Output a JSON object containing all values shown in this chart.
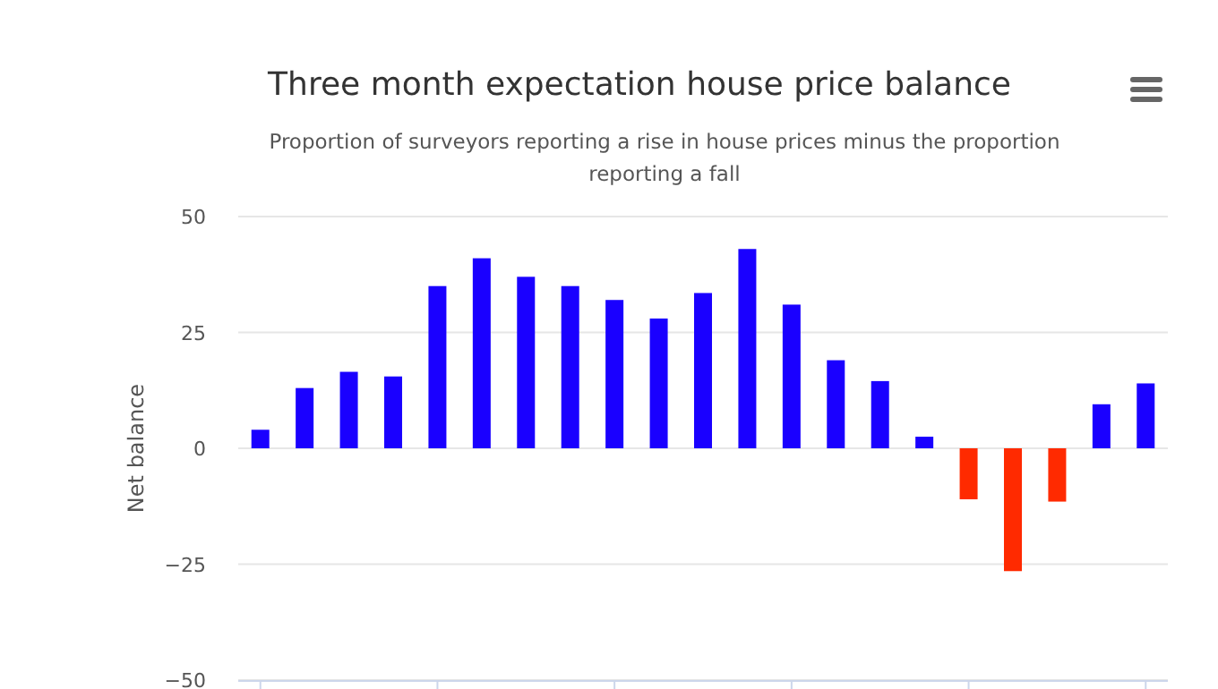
{
  "chart_data": {
    "type": "bar",
    "title": "Three month expectation house price balance",
    "subtitle": "Proportion of surveyors reporting a rise in house prices minus the proportion reporting a fall",
    "ylabel": "Net balance",
    "categories": [
      null,
      null,
      null,
      null,
      null,
      null,
      null,
      null,
      null,
      null,
      null,
      null,
      null,
      null,
      null,
      null,
      null,
      null,
      null,
      null,
      null
    ],
    "values": [
      4,
      13,
      16.5,
      15.5,
      35,
      41,
      37,
      35,
      32,
      28,
      33.5,
      43,
      31,
      19,
      14.5,
      2.5,
      -11,
      -26.5,
      -11.5,
      9.5,
      14
    ],
    "colors": [
      "#1a00ff",
      "#1a00ff",
      "#1a00ff",
      "#1a00ff",
      "#1a00ff",
      "#1a00ff",
      "#1a00ff",
      "#1a00ff",
      "#1a00ff",
      "#1a00ff",
      "#1a00ff",
      "#1a00ff",
      "#1a00ff",
      "#1a00ff",
      "#1a00ff",
      "#1a00ff",
      "#ff2a00",
      "#ff2a00",
      "#ff2a00",
      "#1a00ff",
      "#1a00ff"
    ],
    "ylim": [
      -50,
      50
    ],
    "yticks": [
      -50,
      -25,
      0,
      25,
      50
    ],
    "grid": "y"
  }
}
